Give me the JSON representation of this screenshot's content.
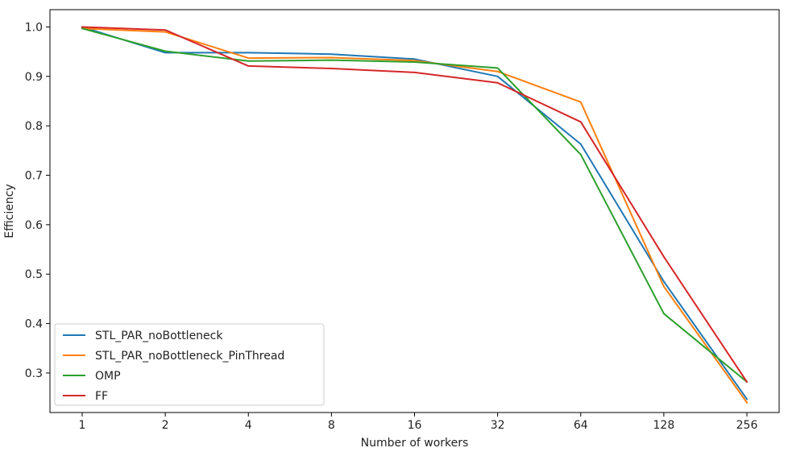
{
  "chart_data": {
    "type": "line",
    "title": "",
    "xlabel": "Number of workers",
    "ylabel": "Efficiency",
    "categories": [
      "1",
      "2",
      "4",
      "8",
      "16",
      "32",
      "64",
      "128",
      "256"
    ],
    "ylim": [
      0.22,
      1.035
    ],
    "yticks": [
      "0.3",
      "0.4",
      "0.5",
      "0.6",
      "0.7",
      "0.8",
      "0.9",
      "1.0"
    ],
    "grid": false,
    "legend_position": "lower-left",
    "series": [
      {
        "name": "STL_PAR_noBottleneck",
        "color": "#1f77b4",
        "values": [
          1.0,
          0.948,
          0.948,
          0.945,
          0.935,
          0.9,
          0.763,
          0.485,
          0.247
        ]
      },
      {
        "name": "STL_PAR_noBottleneck_PinThread",
        "color": "#ff7f0e",
        "values": [
          0.997,
          0.99,
          0.937,
          0.938,
          0.932,
          0.91,
          0.848,
          0.475,
          0.24
        ]
      },
      {
        "name": "OMP",
        "color": "#2ca02c",
        "values": [
          0.997,
          0.951,
          0.931,
          0.933,
          0.929,
          0.917,
          0.742,
          0.42,
          0.282
        ]
      },
      {
        "name": "FF",
        "color": "#d62728",
        "values": [
          1.0,
          0.994,
          0.921,
          0.916,
          0.908,
          0.887,
          0.808,
          0.535,
          0.282
        ]
      }
    ]
  }
}
